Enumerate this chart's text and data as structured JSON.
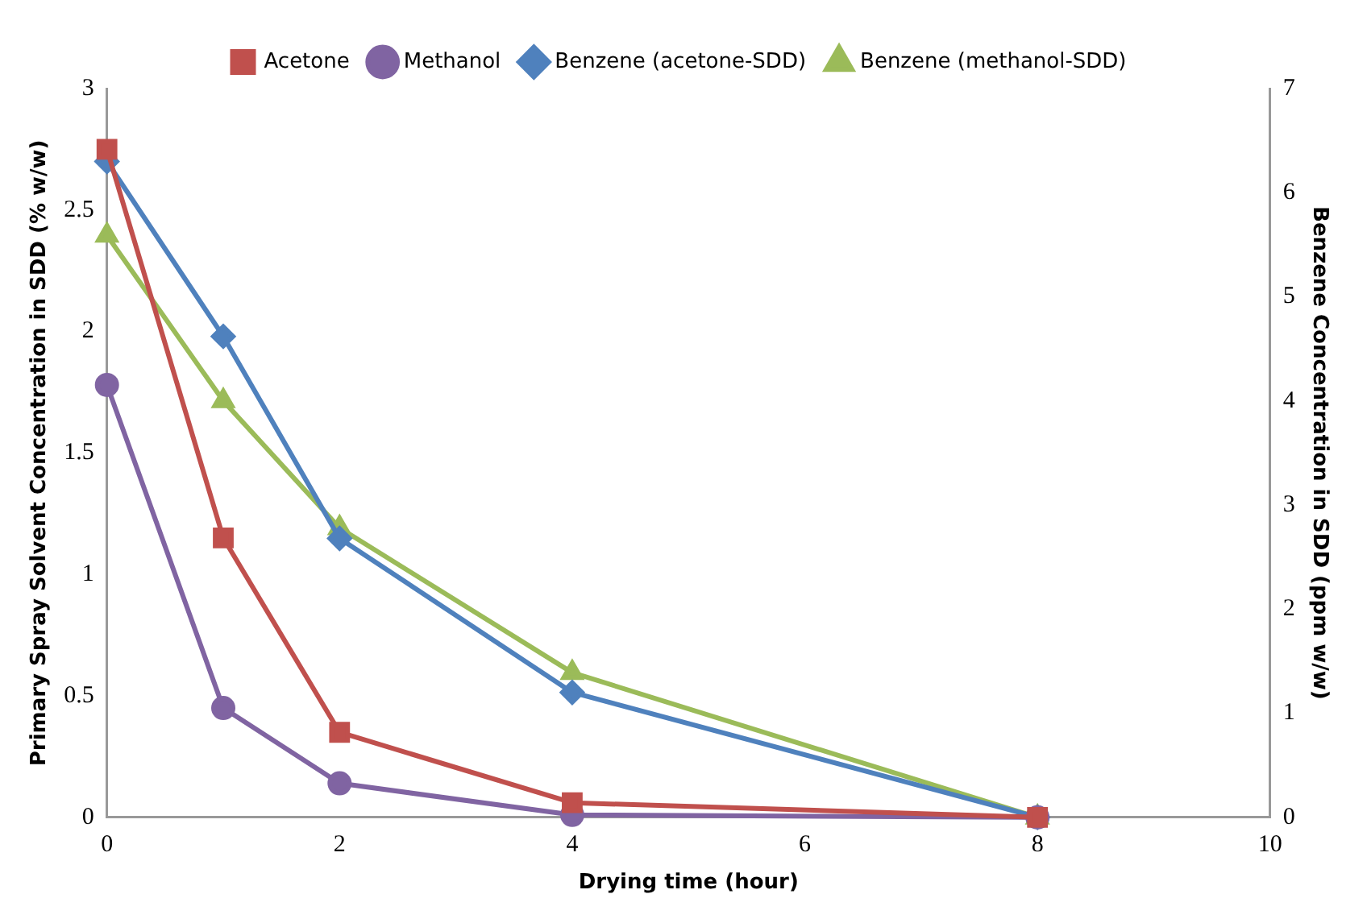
{
  "chart_data": {
    "type": "line",
    "xlabel": "Drying time (hour)",
    "ylabel": "Primary Spray Solvent Concentration in SDD (% w/w)",
    "y2label": "Benzene Concentration in SDD (ppm w/w)",
    "x": [
      0,
      1,
      2,
      4,
      8
    ],
    "series": [
      {
        "name": "Acetone",
        "color": "#c0504d",
        "marker": "square",
        "values": [
          2.75,
          1.15,
          0.35,
          0.06,
          0
        ]
      },
      {
        "name": "Methanol",
        "color": "#8064a2",
        "marker": "circle",
        "values": [
          1.78,
          0.45,
          0.14,
          0.01,
          0
        ]
      },
      {
        "name": "Benzene (acetone-SDD)",
        "color": "#4f81bd",
        "marker": "diamond",
        "axis": "y2",
        "values": [
          6.3,
          4.62,
          2.68,
          1.2,
          0
        ]
      },
      {
        "name": "Benzene (methanol-SDD)",
        "color": "#9bbb59",
        "marker": "triangle",
        "axis": "y2",
        "values": [
          5.59,
          4.0,
          2.78,
          1.39,
          0
        ]
      }
    ],
    "xlim": [
      0,
      10
    ],
    "xticks": [
      0,
      2,
      4,
      6,
      8,
      10
    ],
    "ylim": [
      0,
      3
    ],
    "yticks": [
      0,
      0.5,
      1,
      1.5,
      2,
      2.5,
      3
    ],
    "y2lim": [
      0,
      7
    ],
    "y2ticks": [
      0,
      1,
      2,
      3,
      4,
      5,
      6,
      7
    ],
    "grid": false,
    "legend": "top",
    "line_style": "solid"
  }
}
